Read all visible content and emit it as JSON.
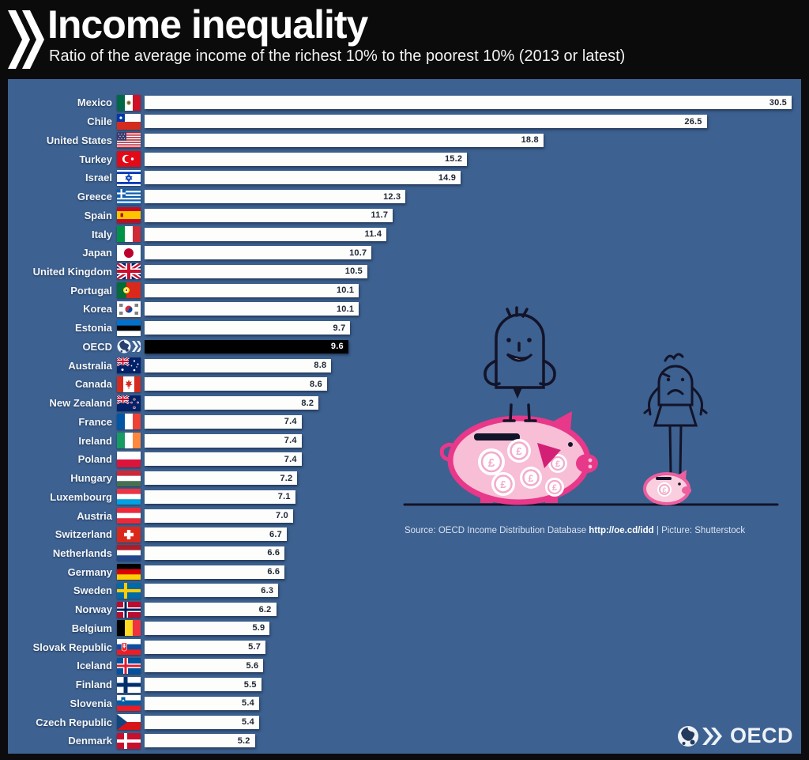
{
  "header": {
    "title": "Income inequality",
    "subtitle": "Ratio of the average income of the richest 10% to the poorest 10% (2013 or latest)"
  },
  "chart_data": {
    "type": "bar",
    "orientation": "horizontal",
    "title": "Income inequality",
    "subtitle": "Ratio of the average income of the richest 10% to the poorest 10% (2013 or latest)",
    "value_range": [
      0,
      30.5
    ],
    "highlighted_category": "OECD",
    "rows": [
      {
        "country": "Mexico",
        "value": 30.5,
        "flag": "mexico"
      },
      {
        "country": "Chile",
        "value": 26.5,
        "flag": "chile"
      },
      {
        "country": "United States",
        "value": 18.8,
        "flag": "usa"
      },
      {
        "country": "Turkey",
        "value": 15.2,
        "flag": "turkey"
      },
      {
        "country": "Israel",
        "value": 14.9,
        "flag": "israel"
      },
      {
        "country": "Greece",
        "value": 12.3,
        "flag": "greece"
      },
      {
        "country": "Spain",
        "value": 11.7,
        "flag": "spain"
      },
      {
        "country": "Italy",
        "value": 11.4,
        "flag": "italy"
      },
      {
        "country": "Japan",
        "value": 10.7,
        "flag": "japan"
      },
      {
        "country": "United Kingdom",
        "value": 10.5,
        "flag": "uk"
      },
      {
        "country": "Portugal",
        "value": 10.1,
        "flag": "portugal"
      },
      {
        "country": "Korea",
        "value": 10.1,
        "flag": "korea"
      },
      {
        "country": "Estonia",
        "value": 9.7,
        "flag": "estonia"
      },
      {
        "country": "OECD",
        "value": 9.6,
        "flag": "oecd",
        "highlight": true
      },
      {
        "country": "Australia",
        "value": 8.8,
        "flag": "australia"
      },
      {
        "country": "Canada",
        "value": 8.6,
        "flag": "canada"
      },
      {
        "country": "New Zealand",
        "value": 8.2,
        "flag": "newzealand"
      },
      {
        "country": "France",
        "value": 7.4,
        "flag": "france"
      },
      {
        "country": "Ireland",
        "value": 7.4,
        "flag": "ireland"
      },
      {
        "country": "Poland",
        "value": 7.4,
        "flag": "poland"
      },
      {
        "country": "Hungary",
        "value": 7.2,
        "flag": "hungary"
      },
      {
        "country": "Luxembourg",
        "value": 7.1,
        "flag": "luxembourg"
      },
      {
        "country": "Austria",
        "value": 7.0,
        "flag": "austria"
      },
      {
        "country": "Switzerland",
        "value": 6.7,
        "flag": "switzerland"
      },
      {
        "country": "Netherlands",
        "value": 6.6,
        "flag": "netherlands"
      },
      {
        "country": "Germany",
        "value": 6.6,
        "flag": "germany"
      },
      {
        "country": "Sweden",
        "value": 6.3,
        "flag": "sweden"
      },
      {
        "country": "Norway",
        "value": 6.2,
        "flag": "norway"
      },
      {
        "country": "Belgium",
        "value": 5.9,
        "flag": "belgium"
      },
      {
        "country": "Slovak Republic",
        "value": 5.7,
        "flag": "slovakia"
      },
      {
        "country": "Iceland",
        "value": 5.6,
        "flag": "iceland"
      },
      {
        "country": "Finland",
        "value": 5.5,
        "flag": "finland"
      },
      {
        "country": "Slovenia",
        "value": 5.4,
        "flag": "slovenia"
      },
      {
        "country": "Czech Republic",
        "value": 5.4,
        "flag": "czechia"
      },
      {
        "country": "Denmark",
        "value": 5.2,
        "flag": "denmark"
      }
    ]
  },
  "footnote": {
    "source_prefix": "Source: OECD Income Distribution Database ",
    "source_link": "http://oe.cd/idd",
    "source_suffix": " | Picture: Shutterstock"
  },
  "footer": {
    "brand": "OECD"
  },
  "colors": {
    "panel_background": "#3d6190",
    "header_background": "#0b0b0c",
    "bar_fill": "#fdfdfb",
    "bar_highlight": "#000000",
    "value_text": "#1d2636",
    "label_text": "#f4f7fb",
    "pig_outline": "#e8388a",
    "pig_fill": "#f7bed6"
  }
}
